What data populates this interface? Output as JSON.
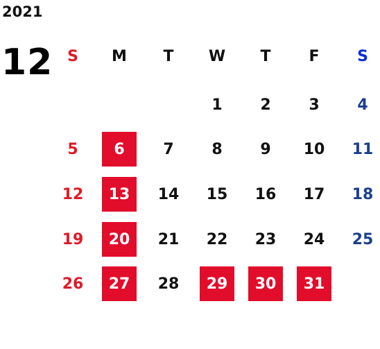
{
  "calendar": {
    "year": "2021",
    "month": "12",
    "weekday_headers": [
      "S",
      "M",
      "T",
      "W",
      "T",
      "F",
      "S"
    ],
    "weeks": [
      [
        "",
        "",
        "",
        "1",
        "2",
        "3",
        "4"
      ],
      [
        "5",
        "6",
        "7",
        "8",
        "9",
        "10",
        "11"
      ],
      [
        "12",
        "13",
        "14",
        "15",
        "16",
        "17",
        "18"
      ],
      [
        "19",
        "20",
        "21",
        "22",
        "23",
        "24",
        "25"
      ],
      [
        "26",
        "27",
        "28",
        "29",
        "30",
        "31",
        ""
      ]
    ],
    "highlighted_days": [
      "6",
      "13",
      "20",
      "27",
      "29",
      "30",
      "31"
    ],
    "colors": {
      "sunday": "#e01a28",
      "saturday": "#1b3f8f",
      "saturday_header": "#0a2fd0",
      "weekday": "#111111",
      "highlight_bg": "#e20d2b",
      "highlight_text": "#ffffff"
    }
  }
}
